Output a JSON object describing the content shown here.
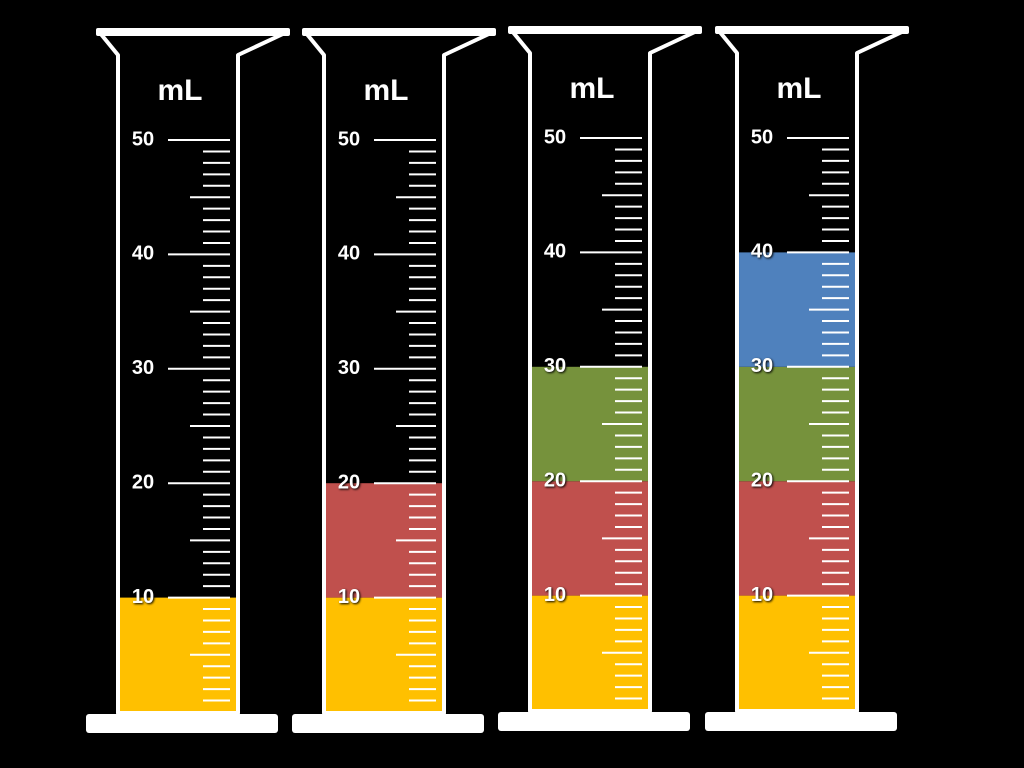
{
  "cylinders": [
    {
      "unit": "mL",
      "ylim": [
        0,
        50
      ],
      "ticks": [
        10,
        20,
        30,
        40,
        50
      ],
      "layers": [
        {
          "color": "#ffc000",
          "value": 10
        }
      ]
    },
    {
      "unit": "mL",
      "ylim": [
        0,
        50
      ],
      "ticks": [
        10,
        20,
        30,
        40,
        50
      ],
      "layers": [
        {
          "color": "#ffc000",
          "value": 10
        },
        {
          "color": "#c0504d",
          "value": 10
        }
      ]
    },
    {
      "unit": "mL",
      "ylim": [
        0,
        50
      ],
      "ticks": [
        10,
        20,
        30,
        40,
        50
      ],
      "layers": [
        {
          "color": "#ffc000",
          "value": 10
        },
        {
          "color": "#c0504d",
          "value": 10
        },
        {
          "color": "#76923c",
          "value": 10
        }
      ]
    },
    {
      "unit": "mL",
      "ylim": [
        0,
        50
      ],
      "ticks": [
        10,
        20,
        30,
        40,
        50
      ],
      "layers": [
        {
          "color": "#ffc000",
          "value": 10
        },
        {
          "color": "#c0504d",
          "value": 10
        },
        {
          "color": "#76923c",
          "value": 10
        },
        {
          "color": "#4f81bd",
          "value": 10
        }
      ]
    }
  ]
}
